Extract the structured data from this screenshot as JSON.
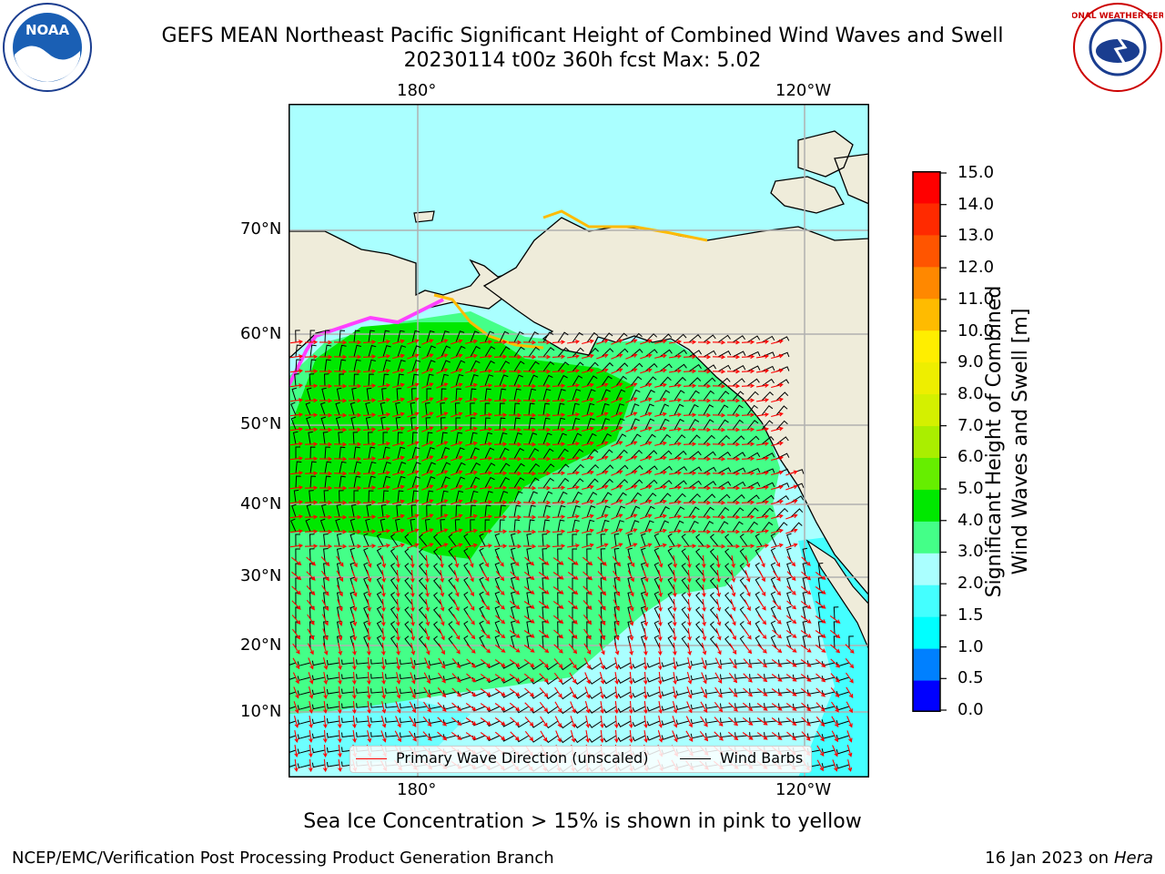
{
  "header": {
    "title_line1": "GEFS MEAN Northeast Pacific Significant Height of Combined Wind Waves and Swell",
    "title_line2": "20230114 t00z 360h fcst   Max: 5.02"
  },
  "logos": {
    "noaa": {
      "text": "NOAA",
      "icon": "noaa-logo"
    },
    "nws": {
      "text": "NATIONAL WEATHER SERVICE",
      "icon": "nws-logo"
    }
  },
  "map": {
    "lon_labels_top": [
      "180°",
      "120°W"
    ],
    "lon_labels_bottom": [
      "180°",
      "120°W"
    ],
    "lat_labels": [
      "70°N",
      "60°N",
      "50°N",
      "40°N",
      "30°N",
      "20°N",
      "10°N"
    ],
    "colors": {
      "land": "#efecda",
      "coast": "#000000",
      "grid": "#b0b0b0",
      "wave_arrow": "#ff0000",
      "wind_barb": "#000000",
      "ice_pink": "#ff40ff",
      "ice_yellow": "#ffcc33"
    }
  },
  "legend": {
    "wave_label": "Primary Wave Direction (unscaled)",
    "barb_label": "Wind Barbs"
  },
  "colorbar": {
    "label_line1": "Significant Height of Combined",
    "label_line2": "Wind Waves and Swell [m]",
    "ticks": [
      "15.0",
      "14.0",
      "13.0",
      "12.0",
      "11.0",
      "10.0",
      "9.0",
      "8.0",
      "7.0",
      "6.0",
      "5.0",
      "4.0",
      "3.0",
      "2.0",
      "1.5",
      "1.0",
      "0.5",
      "0.0"
    ],
    "colors_bottom_to_top": [
      "#0000ff",
      "#0080ff",
      "#00ffff",
      "#44ffff",
      "#aaffff",
      "#44ff88",
      "#00e800",
      "#66ee00",
      "#aaee00",
      "#d4f000",
      "#eeee00",
      "#ffee00",
      "#ffbb00",
      "#ff8800",
      "#ff5500",
      "#ff2a00",
      "#ff0000"
    ]
  },
  "caption": "Sea Ice Concentration > 15% is shown in pink to yellow",
  "footer": {
    "left": "NCEP/EMC/Verification Post Processing Product Generation Branch",
    "right_prefix": "16 Jan 2023 on ",
    "right_host": "Hera"
  }
}
